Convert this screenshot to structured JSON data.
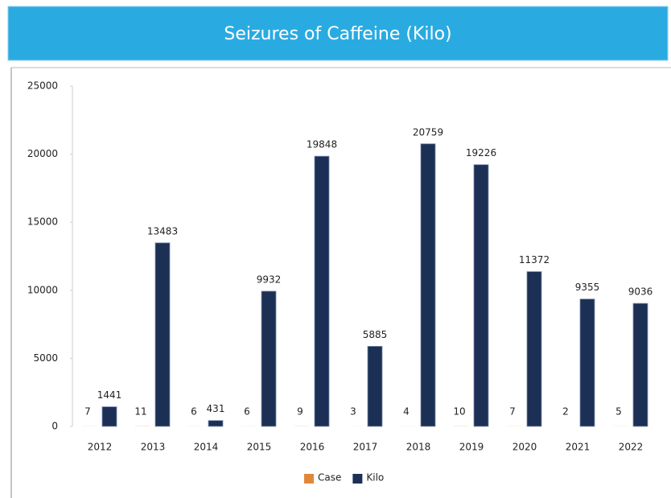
{
  "chart_data": {
    "type": "bar",
    "title": "Seizures of Caffeine (Kilo)",
    "categories": [
      "2012",
      "2013",
      "2014",
      "2015",
      "2016",
      "2017",
      "2018",
      "2019",
      "2020",
      "2021",
      "2022"
    ],
    "series": [
      {
        "name": "Case",
        "color": "#e0883a",
        "values": [
          7,
          11,
          6,
          6,
          9,
          3,
          4,
          10,
          7,
          2,
          5
        ]
      },
      {
        "name": "Kilo",
        "color": "#1c2f55",
        "values": [
          1441,
          13483,
          431,
          9932,
          19848,
          5885,
          20759,
          19226,
          11372,
          9355,
          9036
        ]
      }
    ],
    "ylim": [
      0,
      25000
    ],
    "yticks": [
      0,
      5000,
      10000,
      15000,
      20000,
      25000
    ],
    "grid": false,
    "legend": "bottom"
  }
}
